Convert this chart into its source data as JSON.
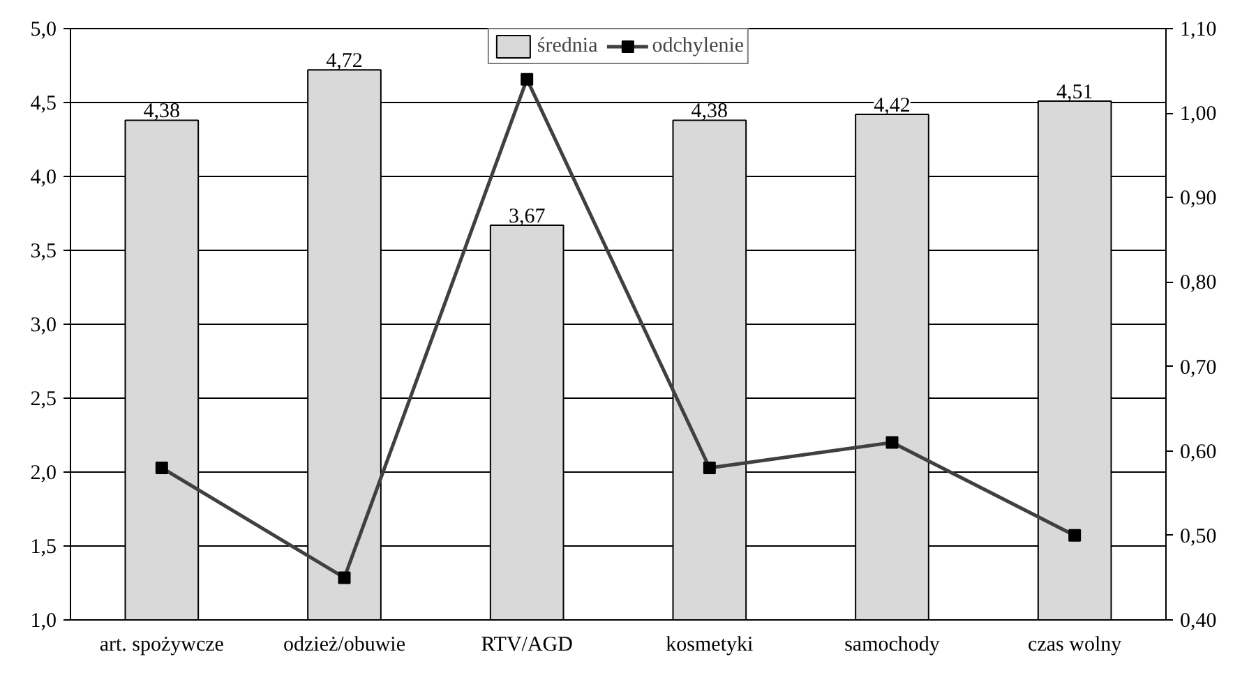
{
  "chart_data": {
    "type": "bar",
    "categories": [
      "art. spożywcze",
      "odzież/obuwie",
      "RTV/AGD",
      "kosmetyki",
      "samochody",
      "czas wolny"
    ],
    "series": [
      {
        "name": "średnia",
        "color": "#d9d9d9",
        "values": [
          4.38,
          4.72,
          3.67,
          4.38,
          4.42,
          4.51
        ],
        "value_labels": [
          "4,38",
          "4,72",
          "3,67",
          "4,38",
          "4,42",
          "4,51"
        ]
      },
      {
        "name": "odchylenie",
        "type": "line",
        "axis": "y2",
        "color": "#404040",
        "marker": "square",
        "line_style": "solid",
        "values": [
          0.58,
          0.45,
          1.04,
          0.58,
          0.61,
          0.5
        ]
      }
    ],
    "ylim": [
      1.0,
      5.0
    ],
    "yticks": [
      {
        "value": 1.0,
        "label": "1,0"
      },
      {
        "value": 1.5,
        "label": "1,5"
      },
      {
        "value": 2.0,
        "label": "2,0"
      },
      {
        "value": 2.5,
        "label": "2,5"
      },
      {
        "value": 3.0,
        "label": "3,0"
      },
      {
        "value": 3.5,
        "label": "3,5"
      },
      {
        "value": 4.0,
        "label": "4,0"
      },
      {
        "value": 4.5,
        "label": "4,5"
      },
      {
        "value": 5.0,
        "label": "5,0"
      }
    ],
    "y2lim": [
      0.4,
      1.1
    ],
    "y2ticks": [
      {
        "value": 0.4,
        "label": "0,40"
      },
      {
        "value": 0.5,
        "label": "0,50"
      },
      {
        "value": 0.6,
        "label": "0,60"
      },
      {
        "value": 0.7,
        "label": "0,70"
      },
      {
        "value": 0.8,
        "label": "0,80"
      },
      {
        "value": 0.9,
        "label": "0,90"
      },
      {
        "value": 1.0,
        "label": "1,00"
      },
      {
        "value": 1.1,
        "label": "1,10"
      }
    ],
    "grid": "y",
    "legend": "top"
  }
}
